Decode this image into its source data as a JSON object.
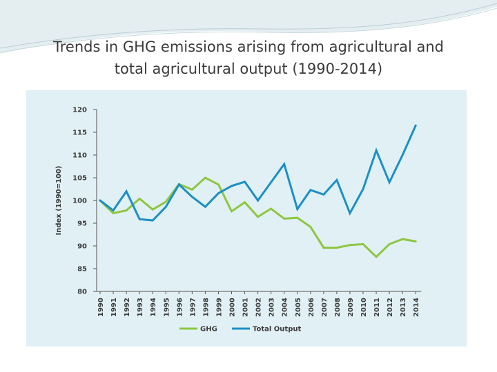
{
  "slide": {
    "title_line1": "Trends in GHG emissions arising from agricultural and",
    "title_line2": "total agricultural output (1990-2014)"
  },
  "chart_data": {
    "type": "line",
    "title": "",
    "xlabel": "",
    "ylabel": "Index (1990=100)",
    "ylim": [
      80,
      120
    ],
    "yticks": [
      80,
      85,
      90,
      95,
      100,
      105,
      110,
      115,
      120
    ],
    "grid": false,
    "legend_position": "bottom",
    "categories": [
      "1990",
      "1991",
      "1992",
      "1993",
      "1994",
      "1995",
      "1996",
      "1997",
      "1998",
      "1999",
      "2000",
      "2001",
      "2002",
      "2003",
      "2004",
      "2005",
      "2006",
      "2007",
      "2008",
      "2009",
      "2010",
      "2011",
      "2012",
      "2013",
      "2014"
    ],
    "series": [
      {
        "name": "GHG",
        "color": "#8dc63f",
        "values": [
          100,
          97.2,
          97.8,
          100.4,
          98.0,
          99.7,
          103.6,
          102.4,
          105.0,
          103.5,
          97.6,
          99.6,
          96.4,
          98.2,
          96.0,
          96.2,
          94.2,
          89.6,
          89.6,
          90.2,
          90.4,
          87.6,
          90.4,
          91.5,
          91.0
        ]
      },
      {
        "name": "Total Output",
        "color": "#1b8fc7",
        "values": [
          100,
          97.8,
          102.0,
          95.9,
          95.6,
          98.6,
          103.5,
          100.8,
          98.6,
          101.6,
          103.2,
          104.1,
          100.0,
          104.0,
          108.0,
          98.1,
          102.3,
          101.3,
          104.5,
          97.2,
          102.5,
          111.0,
          104.0,
          110.0,
          116.5
        ]
      }
    ]
  }
}
